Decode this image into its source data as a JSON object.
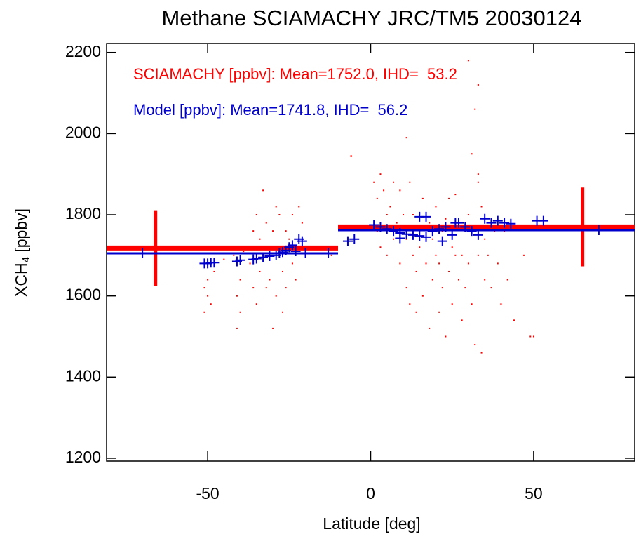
{
  "chart_data": {
    "type": "scatter",
    "title": "Methane SCIAMACHY JRC/TM5 20030124",
    "xlabel": "Latitude [deg]",
    "ylabel_parts": [
      "XCH",
      "4",
      " [ppbv]"
    ],
    "xlim": [
      -81,
      81
    ],
    "ylim": [
      1193,
      2222
    ],
    "xticks": [
      -50,
      0,
      50
    ],
    "yticks": [
      1200,
      1400,
      1600,
      1800,
      2000,
      2200
    ],
    "series": [
      {
        "name": "SCIAMACHY [ppbv]: Mean=1752.0, IHD=  53.2",
        "color": "#ff0000",
        "marker": "dot",
        "x": [
          -51,
          -50,
          -50,
          -49,
          -51,
          -48,
          -45,
          -42,
          -41,
          -40,
          -40,
          -39,
          -41,
          -37,
          -36,
          -36,
          -35,
          -35,
          -34,
          -34,
          -33,
          -33,
          -32,
          -32,
          -31,
          -30,
          -30,
          -29,
          -29,
          -28,
          -28,
          -27,
          -27,
          -26,
          -26,
          -25,
          -24,
          -24,
          -23,
          -22,
          -22,
          -21,
          -20,
          -12,
          -6,
          1,
          2,
          2,
          3,
          3,
          4,
          5,
          5,
          6,
          7,
          7,
          8,
          9,
          9,
          10,
          11,
          11,
          12,
          12,
          13,
          13,
          14,
          14,
          15,
          15,
          16,
          16,
          17,
          18,
          18,
          19,
          19,
          20,
          20,
          21,
          21,
          22,
          22,
          23,
          23,
          24,
          24,
          25,
          25,
          26,
          26,
          27,
          27,
          28,
          28,
          29,
          29,
          30,
          30,
          31,
          31,
          32,
          32,
          33,
          33,
          33,
          34,
          34,
          35,
          35,
          36,
          37,
          38,
          39,
          40,
          41,
          42,
          44,
          49,
          50,
          47,
          33,
          11,
          30
        ],
        "values": [
          1560,
          1600,
          1640,
          1580,
          1620,
          1660,
          1690,
          1700,
          1520,
          1560,
          1640,
          1710,
          1600,
          1680,
          1760,
          1620,
          1800,
          1580,
          1740,
          1660,
          1860,
          1700,
          1620,
          1780,
          1640,
          1760,
          1520,
          1820,
          1600,
          1700,
          1800,
          1560,
          1660,
          1760,
          1620,
          1740,
          1680,
          1800,
          1640,
          1820,
          1720,
          1780,
          1700,
          1700,
          1945,
          1880,
          1840,
          1760,
          1900,
          1720,
          1860,
          1800,
          1700,
          1820,
          1880,
          1740,
          1780,
          1860,
          1680,
          1800,
          1740,
          1620,
          1880,
          1580,
          1700,
          1800,
          1560,
          1660,
          1760,
          1720,
          1840,
          1600,
          1680,
          1780,
          1520,
          1740,
          1640,
          1700,
          1820,
          1560,
          1680,
          1760,
          1620,
          1790,
          1500,
          1840,
          1660,
          1720,
          1580,
          1850,
          1700,
          1640,
          1780,
          1540,
          1700,
          1760,
          1620,
          1680,
          1800,
          1950,
          1580,
          2060,
          1480,
          1700,
          2120,
          1900,
          1820,
          1460,
          1640,
          1740,
          1700,
          1620,
          1760,
          1680,
          1580,
          1760,
          1640,
          1540,
          1500,
          1500,
          1700,
          1880,
          1990,
          2180
        ],
        "means": [
          {
            "x0": -81,
            "x1": -10,
            "value": 1718
          },
          {
            "x0": -10,
            "x1": 81,
            "value": 1770
          }
        ],
        "errorbars": [
          {
            "x": -66,
            "value": 1718,
            "error": 93
          },
          {
            "x": 65,
            "value": 1770,
            "error": 97
          }
        ]
      },
      {
        "name": "Model [ppbv]: Mean=1741.8, IHD=  56.2",
        "color": "#0000cc",
        "marker": "plus",
        "x": [
          -70,
          -51,
          -50,
          -49,
          -48,
          -41,
          -40,
          -36,
          -35,
          -33,
          -31,
          -29,
          -28,
          -27,
          -26,
          -25,
          -24,
          -23,
          -22,
          -21,
          -20,
          -13,
          -7,
          -5,
          1,
          3,
          5,
          7,
          9,
          11,
          13,
          15,
          17,
          19,
          21,
          23,
          25,
          27,
          29,
          31,
          33,
          35,
          37,
          39,
          41,
          43,
          51,
          53,
          70,
          26,
          15,
          17,
          9,
          22
        ],
        "values": [
          1705,
          1680,
          1680,
          1682,
          1682,
          1685,
          1688,
          1690,
          1692,
          1695,
          1698,
          1700,
          1705,
          1708,
          1712,
          1720,
          1725,
          1710,
          1740,
          1735,
          1705,
          1705,
          1735,
          1740,
          1775,
          1770,
          1765,
          1760,
          1755,
          1752,
          1750,
          1748,
          1745,
          1760,
          1765,
          1770,
          1750,
          1780,
          1770,
          1760,
          1750,
          1790,
          1780,
          1785,
          1780,
          1778,
          1785,
          1785,
          1762,
          1780,
          1795,
          1795,
          1742,
          1735
        ],
        "means": [
          {
            "x0": -81,
            "x1": -10,
            "value": 1705
          },
          {
            "x0": -10,
            "x1": 81,
            "value": 1762
          }
        ]
      }
    ]
  }
}
